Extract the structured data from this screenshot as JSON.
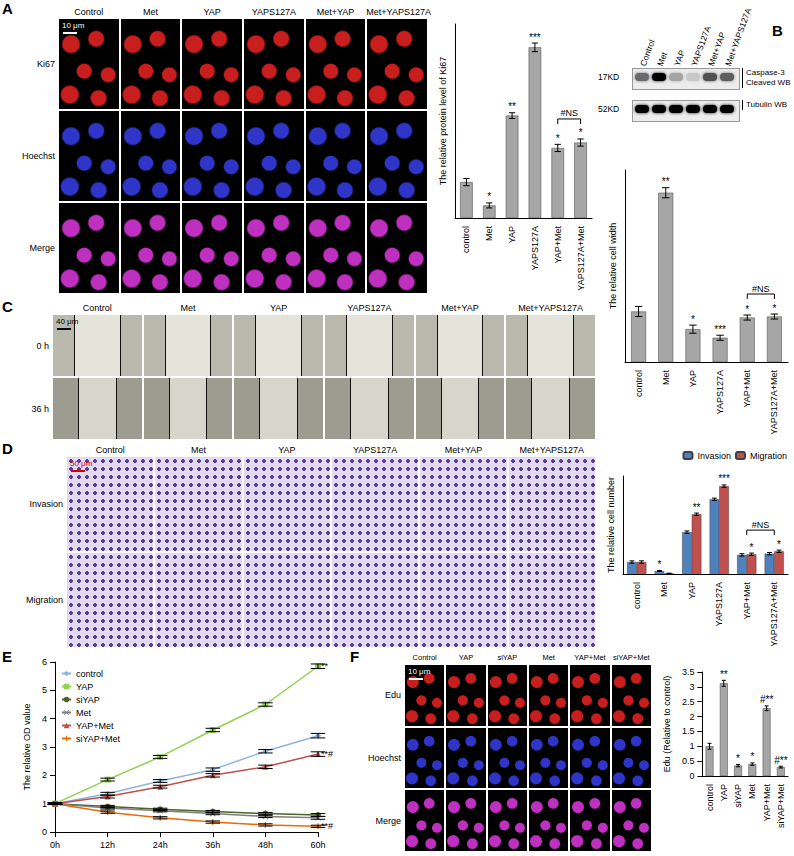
{
  "panels": [
    {
      "letter": "A",
      "columns": [
        "Control",
        "Met",
        "YAP",
        "YAPS127A",
        "Met+YAP",
        "Met+YAPS127A"
      ],
      "rows": [
        "Ki67",
        "Hoechst",
        "Merge"
      ],
      "scale_bar": "10 μm"
    },
    {
      "letter": "B",
      "lanes": [
        "Control",
        "Met",
        "YAP",
        "YAPS127A",
        "Met+YAP",
        "Met+YAPS127A"
      ],
      "blots": [
        {
          "size": "17KD",
          "label": [
            "Caspase-3",
            "Cleaved WB"
          ],
          "band_intensity": [
            0.55,
            1,
            0.3,
            0.15,
            0.65,
            0.6
          ]
        },
        {
          "size": "52KD",
          "label": [
            "Tubulin WB"
          ],
          "band_intensity": [
            1,
            1,
            1,
            1,
            1,
            1
          ]
        }
      ]
    },
    {
      "letter": "C",
      "columns": [
        "Control",
        "Met",
        "YAP",
        "YAPS127A",
        "Met+YAP",
        "Met+YAPS127A"
      ],
      "rows": [
        "0 h",
        "36 h"
      ],
      "scale_bar": "40 μm"
    },
    {
      "letter": "D",
      "columns": [
        "Control",
        "Met",
        "YAP",
        "YAPS127A",
        "Met+YAP",
        "Met+YAPS127A"
      ],
      "rows": [
        "Invasion",
        "Migration"
      ],
      "scale_bar": "50 μm"
    },
    {
      "letter": "E"
    },
    {
      "letter": "F",
      "columns": [
        "Control",
        "YAP",
        "siYAP",
        "Met",
        "YAP+Met",
        "siYAP+Met"
      ],
      "rows": [
        "Edu",
        "Hoechst",
        "Merge"
      ],
      "scale_bar": "10 μm"
    }
  ],
  "chart_data": [
    {
      "type": "bar",
      "ylabel": "The relative protein level of Ki67",
      "categories": [
        "control",
        "Met",
        "YAP",
        "YAPS127A",
        "YAP+Met",
        "YAPS127A+Met"
      ],
      "values": [
        1,
        0.35,
        2.85,
        4.75,
        1.95,
        2.1
      ],
      "errors": [
        0.1,
        0.07,
        0.08,
        0.12,
        0.1,
        0.1
      ],
      "annotations": [
        null,
        "*",
        "**",
        "***",
        "*",
        "*"
      ],
      "brackets": [
        {
          "between": [
            "YAP+Met",
            "YAPS127A+Met"
          ],
          "label": "#NS"
        }
      ],
      "color": "#a6a6a6",
      "ylim": [
        0,
        5.4
      ],
      "tick_labels": "x"
    },
    {
      "type": "bar",
      "ylabel": "The relative cell width",
      "categories": [
        "control",
        "Met",
        "YAP",
        "YAPS127A",
        "YAP+Met",
        "YAPS127A+Met"
      ],
      "values": [
        1,
        3.35,
        0.65,
        0.48,
        0.88,
        0.9
      ],
      "errors": [
        0.1,
        0.1,
        0.08,
        0.05,
        0.05,
        0.05
      ],
      "annotations": [
        null,
        "**",
        "*",
        "***",
        "*",
        "*"
      ],
      "brackets": [
        {
          "between": [
            "YAP+Met",
            "YAPS127A+Met"
          ],
          "label": "#NS"
        }
      ],
      "color": "#a6a6a6",
      "ylim": [
        0,
        3.8
      ],
      "tick_labels": "x"
    },
    {
      "type": "bar",
      "ylabel": "The relative cell number",
      "categories": [
        "control",
        "Met",
        "YAP",
        "YAPS127A",
        "YAP+Met",
        "YAPS127A+Met"
      ],
      "series": [
        {
          "name": "Invasion",
          "color": "#4f81bd",
          "values": [
            1,
            0.25,
            3.5,
            6.25,
            1.6,
            1.7
          ],
          "errors": [
            0.1,
            0.04,
            0.1,
            0.1,
            0.1,
            0.1
          ],
          "annotations": [
            null,
            "*",
            null,
            null,
            null,
            null
          ]
        },
        {
          "name": "Migration",
          "color": "#c0504d",
          "values": [
            1,
            0.05,
            5,
            7.35,
            1.65,
            1.9
          ],
          "errors": [
            0.1,
            0.02,
            0.1,
            0.1,
            0.1,
            0.1
          ],
          "annotations": [
            null,
            null,
            "**",
            "***",
            "*",
            "*"
          ]
        }
      ],
      "brackets": [
        {
          "between": [
            "YAP+Met",
            "YAPS127A+Met"
          ],
          "label": "#NS"
        }
      ],
      "legend": "top-right",
      "ylim": [
        0,
        8.2
      ],
      "tick_labels": "x"
    },
    {
      "type": "line",
      "ylabel": "The relative OD value",
      "categories": [
        "0h",
        "12h",
        "24h",
        "36h",
        "48h",
        "60h"
      ],
      "series": [
        {
          "name": "control",
          "color": "#8eb4e3",
          "marker": "diamond",
          "values": [
            1,
            1.35,
            1.8,
            2.2,
            2.85,
            3.4
          ],
          "errors": [
            0.03,
            0.05,
            0.05,
            0.06,
            0.06,
            0.08
          ]
        },
        {
          "name": "YAP",
          "color": "#92d050",
          "marker": "square",
          "values": [
            1,
            1.85,
            2.65,
            3.6,
            4.5,
            5.85
          ],
          "errors": [
            0.03,
            0.05,
            0.05,
            0.06,
            0.06,
            0.08
          ],
          "end_label": "**"
        },
        {
          "name": "siYAP",
          "color": "#4f6228",
          "marker": "circle",
          "values": [
            1,
            0.9,
            0.8,
            0.72,
            0.65,
            0.6
          ],
          "errors": [
            0.03,
            0.04,
            0.04,
            0.04,
            0.04,
            0.05
          ]
        },
        {
          "name": "Met",
          "color": "#7f7f7f",
          "marker": "x",
          "values": [
            1,
            0.85,
            0.75,
            0.65,
            0.55,
            0.5
          ],
          "errors": [
            0.03,
            0.04,
            0.04,
            0.04,
            0.04,
            0.05
          ]
        },
        {
          "name": "YAP+Met",
          "color": "#c0504d",
          "marker": "triangle",
          "values": [
            1,
            1.25,
            1.6,
            2.0,
            2.3,
            2.75
          ],
          "errors": [
            0.03,
            0.05,
            0.05,
            0.06,
            0.06,
            0.08
          ],
          "end_label": "**#"
        },
        {
          "name": "siYAP+Met",
          "color": "#e46c0a",
          "marker": "plus",
          "values": [
            1,
            0.7,
            0.5,
            0.35,
            0.25,
            0.2
          ],
          "errors": [
            0.03,
            0.04,
            0.04,
            0.04,
            0.04,
            0.04
          ],
          "end_label": "**#"
        }
      ],
      "legend": "top-left",
      "ylim": [
        0,
        6
      ],
      "yticks": [
        0,
        1,
        2,
        3,
        4,
        5,
        6
      ]
    },
    {
      "type": "bar",
      "ylabel": "Edu (Relative to control)",
      "categories": [
        "control",
        "YAP",
        "siYAP",
        "Met",
        "YAP+Met",
        "siYAP+Met"
      ],
      "values": [
        1,
        3.12,
        0.35,
        0.4,
        2.28,
        0.3
      ],
      "errors": [
        0.1,
        0.1,
        0.04,
        0.04,
        0.08,
        0.03
      ],
      "annotations": [
        null,
        "**",
        "*",
        "*",
        "#**",
        "#**"
      ],
      "color": "#a6a6a6",
      "ylim": [
        0,
        3.5
      ],
      "yticks": [
        0,
        0.5,
        1,
        1.5,
        2,
        2.5,
        3,
        3.5
      ]
    }
  ]
}
